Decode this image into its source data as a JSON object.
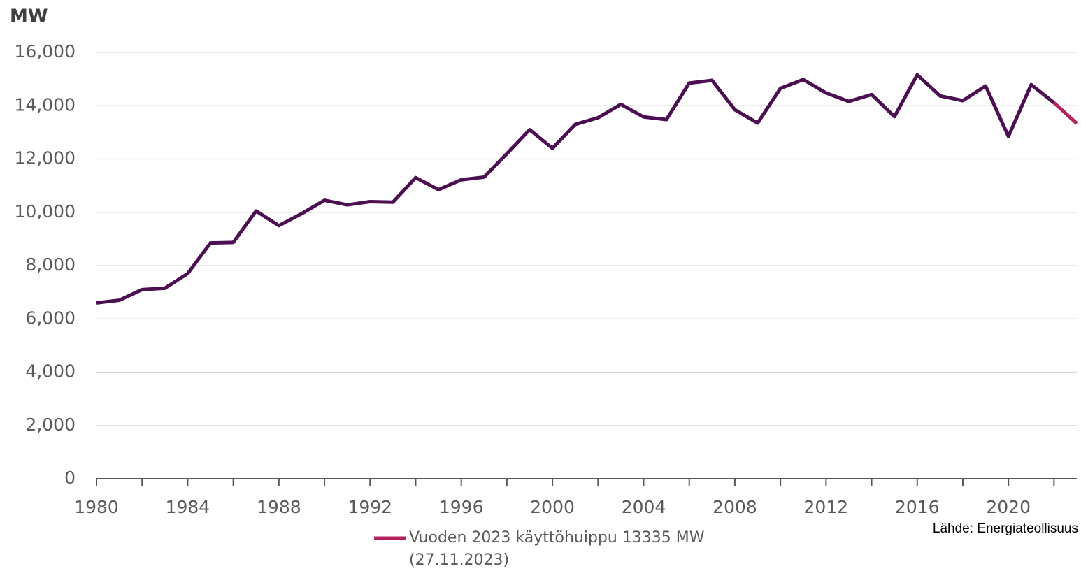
{
  "chart_data": {
    "type": "line",
    "y_axis_label": "MW",
    "source": "Lähde: Energiateollisuus",
    "x": [
      1980,
      1981,
      1982,
      1983,
      1984,
      1985,
      1986,
      1987,
      1988,
      1989,
      1990,
      1991,
      1992,
      1993,
      1994,
      1995,
      1996,
      1997,
      1998,
      1999,
      2000,
      2001,
      2002,
      2003,
      2004,
      2005,
      2006,
      2007,
      2008,
      2009,
      2010,
      2011,
      2012,
      2013,
      2014,
      2015,
      2016,
      2017,
      2018,
      2019,
      2020,
      2021,
      2022,
      2023
    ],
    "series": [
      {
        "color": "#4b0f52",
        "values": [
          6600,
          6700,
          7100,
          7150,
          7700,
          8850,
          8870,
          10050,
          9500,
          9950,
          10450,
          10280,
          10400,
          10380,
          11300,
          10850,
          11220,
          11320,
          12200,
          13100,
          12400,
          13300,
          13550,
          14050,
          13580,
          13480,
          14850,
          14950,
          13850,
          13350,
          14650,
          14980,
          14480,
          14160,
          14420,
          13590,
          15160,
          14370,
          14190,
          14740,
          12850,
          14790,
          14110,
          null
        ]
      },
      {
        "name": "Vuoden 2023 käyttöhuippu 13335 MW",
        "note": "(27.11.2023)",
        "color": "#b5215e",
        "values": [
          null,
          null,
          null,
          null,
          null,
          null,
          null,
          null,
          null,
          null,
          null,
          null,
          null,
          null,
          null,
          null,
          null,
          null,
          null,
          null,
          null,
          null,
          null,
          null,
          null,
          null,
          null,
          null,
          null,
          null,
          null,
          null,
          null,
          null,
          null,
          null,
          null,
          null,
          null,
          null,
          null,
          null,
          14110,
          13335
        ]
      }
    ],
    "xlim": [
      1980,
      2023
    ],
    "xticks": [
      1980,
      1984,
      1988,
      1992,
      1996,
      2000,
      2004,
      2008,
      2012,
      2016,
      2020
    ],
    "xminorticks": [
      1982,
      1986,
      1990,
      1994,
      1998,
      2002,
      2006,
      2010,
      2014,
      2018,
      2022
    ],
    "ylim": [
      0,
      16000
    ],
    "yticks": [
      0,
      {
        "value": 2000,
        "label": "2,000"
      },
      {
        "value": 4000,
        "label": "4,000"
      },
      {
        "value": 6000,
        "label": "6,000"
      },
      {
        "value": 8000,
        "label": "8,000"
      },
      {
        "value": 10000,
        "label": "10,000"
      },
      {
        "value": 12000,
        "label": "12,000"
      },
      {
        "value": 14000,
        "label": "14,000"
      },
      {
        "value": 16000,
        "label": "16,000"
      }
    ],
    "grid": true
  }
}
